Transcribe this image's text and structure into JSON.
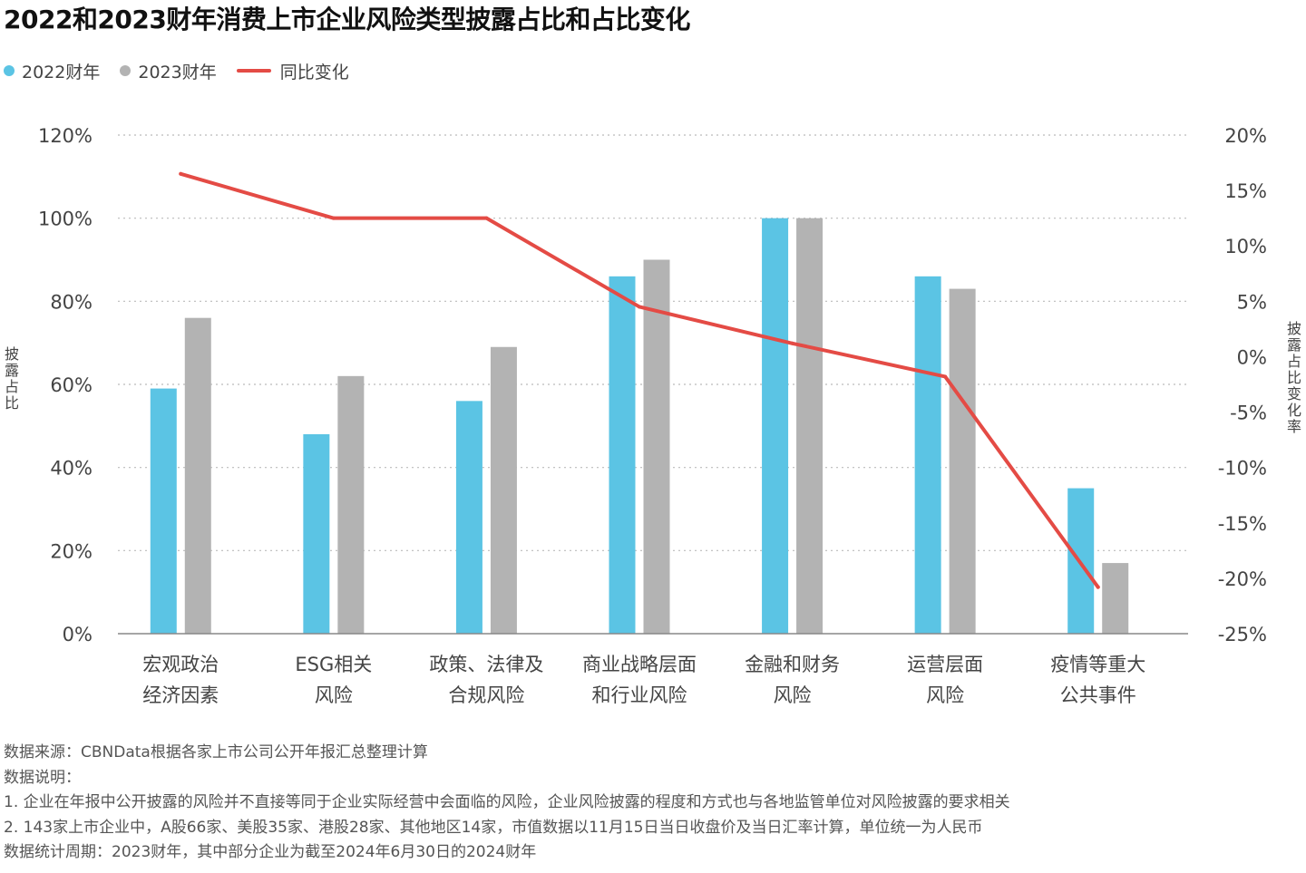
{
  "title": "2022和2023财年消费上市企业风险类型披露占比和占比变化",
  "colors": {
    "fy2022": "#5BC4E4",
    "fy2023": "#B3B3B3",
    "yoy": "#E44B45",
    "grid": "#BBBBBB",
    "axis": "#888888"
  },
  "chart_data": {
    "type": "bar",
    "categories": [
      [
        "宏观政治",
        "经济因素"
      ],
      [
        "ESG相关",
        "风险"
      ],
      [
        "政策、法律及",
        "合规风险"
      ],
      [
        "商业战略层面",
        "和行业风险"
      ],
      [
        "金融和财务",
        "风险"
      ],
      [
        "运营层面",
        "风险"
      ],
      [
        "疫情等重大",
        "公共事件"
      ]
    ],
    "series": [
      {
        "name": "2022财年",
        "kind": "bar",
        "axis": "left",
        "values": [
          59,
          48,
          56,
          86,
          100,
          86,
          35
        ]
      },
      {
        "name": "2023财年",
        "kind": "bar",
        "axis": "left",
        "values": [
          76,
          62,
          69,
          90,
          100,
          83,
          17
        ]
      },
      {
        "name": "同比变化",
        "kind": "line",
        "axis": "right",
        "values": [
          16.5,
          12.5,
          12.5,
          4.5,
          1.2,
          -1.8,
          -20.8
        ]
      }
    ],
    "ylabel": "披露占比",
    "y2label": "披露占比变化率",
    "ylim": [
      0,
      120
    ],
    "y_ticks": [
      0,
      20,
      40,
      60,
      80,
      100,
      120
    ],
    "y_tick_labels": [
      "0%",
      "20%",
      "40%",
      "60%",
      "80%",
      "100%",
      "120%"
    ],
    "y2lim": [
      -25,
      20
    ],
    "y2_ticks": [
      -25,
      -20,
      -15,
      -10,
      -5,
      0,
      5,
      10,
      15,
      20
    ],
    "y2_tick_labels": [
      "-25%",
      "-20%",
      "-15%",
      "-10%",
      "-5%",
      "0%",
      "5%",
      "10%",
      "15%",
      "20%"
    ],
    "grid": true,
    "legend": "top-left"
  },
  "notes": [
    "数据来源：CBNData根据各家上市公司公开年报汇总整理计算",
    "数据说明：",
    "1. 企业在年报中公开披露的风险并不直接等同于企业实际经营中会面临的风险，企业风险披露的程度和方式也与各地监管单位对风险披露的要求相关",
    "2. 143家上市企业中，A股66家、美股35家、港股28家、其他地区14家，市值数据以11月15日当日收盘价及当日汇率计算，单位统一为人民币",
    "数据统计周期：2023财年，其中部分企业为截至2024年6月30日的2024财年"
  ]
}
